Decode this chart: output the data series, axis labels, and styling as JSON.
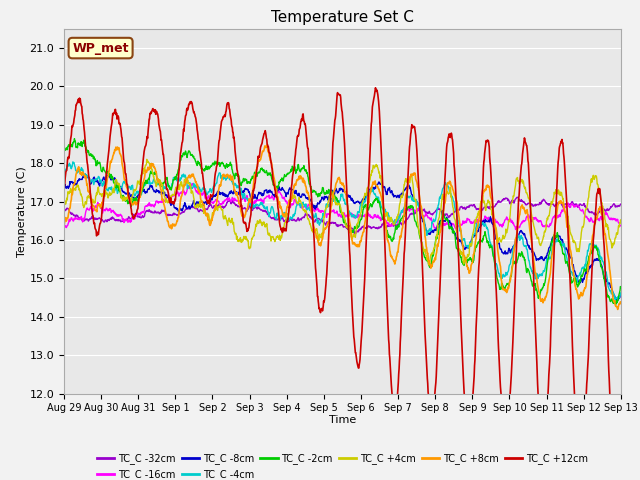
{
  "title": "Temperature Set C",
  "xlabel": "Time",
  "ylabel": "Temperature (C)",
  "ylim": [
    12.0,
    21.5
  ],
  "yticks": [
    12.0,
    13.0,
    14.0,
    15.0,
    16.0,
    17.0,
    18.0,
    19.0,
    20.0,
    21.0
  ],
  "legend_label": "WP_met",
  "legend_box_color": "#ffffcc",
  "legend_box_edge": "#8B4513",
  "series_colors": {
    "TC_C -32cm": "#9900cc",
    "TC_C -16cm": "#ff00ff",
    "TC_C -8cm": "#0000cc",
    "TC_C -4cm": "#00cccc",
    "TC_C -2cm": "#00cc00",
    "TC_C +4cm": "#cccc00",
    "TC_C +8cm": "#ff9900",
    "TC_C +12cm": "#cc0000"
  },
  "xtick_labels": [
    "Aug 29",
    "Aug 30",
    "Aug 31",
    "Sep 1",
    "Sep 2",
    "Sep 3",
    "Sep 4",
    "Sep 5",
    "Sep 6",
    "Sep 7",
    "Sep 8",
    "Sep 9",
    "Sep 10",
    "Sep 11",
    "Sep 12",
    "Sep 13"
  ],
  "num_days": 15
}
